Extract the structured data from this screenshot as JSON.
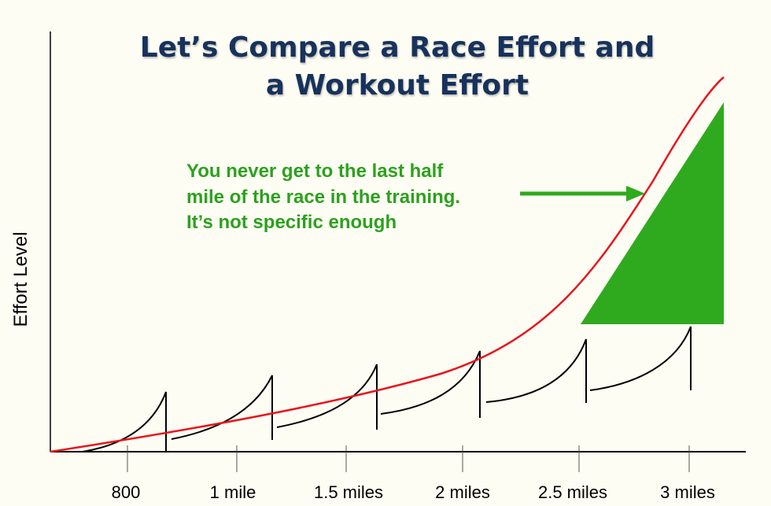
{
  "title": {
    "line1": "Let’s Compare a Race Effort and",
    "line2": "a Workout Effort"
  },
  "annotation": {
    "line1": "You never get to the last half",
    "line2": "mile of the race in the training.",
    "line3": "It’s not specific enough"
  },
  "axis": {
    "ylabel": "Effort Level",
    "xticks": [
      "800",
      "1 mile",
      "1.5 miles",
      "2 miles",
      "2.5 miles",
      "3 miles"
    ]
  },
  "colors": {
    "race_curve": "#e8141c",
    "workout_curves": "#000000",
    "highlight": "#2faa1e",
    "title": "#17325c",
    "annotation": "#2ca11f"
  },
  "icons": {
    "arrow": "arrow-right-icon",
    "triangle": "effort-gap-triangle"
  }
}
